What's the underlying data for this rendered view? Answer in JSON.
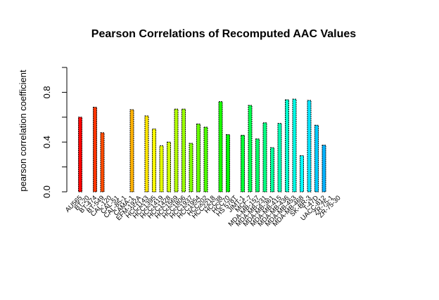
{
  "chart_data": {
    "type": "bar",
    "title": "Pearson Correlations of Recomputed AAC Values",
    "xlabel": "",
    "ylabel": "pearson correlation coefficient",
    "ylim": [
      0,
      1
    ],
    "yticks": [
      "0.0",
      "0.4",
      "0.8"
    ],
    "grid": false,
    "legend": "none",
    "categories": [
      "AU565",
      "BT-20",
      "BT-474",
      "BT-549",
      "CAL-120",
      "CAL-51",
      "CAL-85-1",
      "CAMA-1",
      "EFM-192A",
      "HCC1143",
      "HCC1395",
      "HCC1419",
      "HCC1428",
      "HCC1569",
      "HCC1806",
      "HCC1937",
      "HCC1954",
      "HCC202",
      "HCC2218",
      "HCC38",
      "HCC70",
      "HS 578T",
      "JIMT-1",
      "MCF-7",
      "MDA-MB-157",
      "MDA-MB-231",
      "MDA-MB-361",
      "MDA-MB-415",
      "MDA-MB-436",
      "MDA-MB-453",
      "MDA-MB-468",
      "SK-BR-3",
      "T-47D",
      "UACC-812",
      "ZR-75-1",
      "ZR-75-30"
    ],
    "values": [
      0.6,
      null,
      0.68,
      0.475,
      null,
      null,
      null,
      0.66,
      null,
      0.61,
      0.505,
      0.37,
      0.4,
      0.665,
      0.665,
      0.39,
      0.545,
      0.52,
      null,
      0.725,
      0.46,
      null,
      0.455,
      0.695,
      0.425,
      0.555,
      0.355,
      0.55,
      0.74,
      0.745,
      0.29,
      0.735,
      0.535,
      0.375,
      null,
      null
    ],
    "colors": [
      "#ff0000",
      "#ff1a00",
      "#ff3300",
      "#ff4c00",
      "#ff6600",
      "#ff8000",
      "#ff9900",
      "#ffb200",
      "#ffcc00",
      "#ffe500",
      "#ffff00",
      "#e6ff00",
      "#ccff00",
      "#b3ff00",
      "#99ff00",
      "#80ff00",
      "#66ff00",
      "#4dff00",
      "#33ff00",
      "#1aff00",
      "#00ff00",
      "#00ff1a",
      "#00ff33",
      "#00ff4d",
      "#00ff66",
      "#00ff80",
      "#00ff99",
      "#00ffb3",
      "#00ffcc",
      "#00ffe6",
      "#00ffff",
      "#00e6ff",
      "#00ccff",
      "#00b3ff",
      "#0099ff",
      "#0080ff"
    ]
  }
}
